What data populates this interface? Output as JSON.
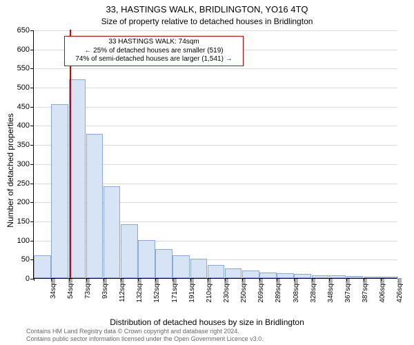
{
  "title_main": "33, HASTINGS WALK, BRIDLINGTON, YO16 4TQ",
  "title_sub": "Size of property relative to detached houses in Bridlington",
  "ylabel": "Number of detached properties",
  "xlabel": "Distribution of detached houses by size in Bridlington",
  "copyright_line1": "Contains HM Land Registry data © Crown copyright and database right 2024.",
  "copyright_line2": "Contains public sector information licensed under the Open Government Licence v3.0.",
  "chart": {
    "type": "histogram",
    "background_color": "#ffffff",
    "grid_color": "#d9d9d9",
    "axis_color": "#000000",
    "bar_fill": "#d6e4f5",
    "bar_border": "#8aa9d6",
    "marker_color": "#cc0000",
    "annotation_border": "#cc0000",
    "ylim": [
      0,
      650
    ],
    "ytick_step": 50,
    "yticks": [
      0,
      50,
      100,
      150,
      200,
      250,
      300,
      350,
      400,
      450,
      500,
      550,
      600,
      650
    ],
    "x_categories": [
      "34sqm",
      "54sqm",
      "73sqm",
      "93sqm",
      "112sqm",
      "132sqm",
      "152sqm",
      "171sqm",
      "191sqm",
      "210sqm",
      "230sqm",
      "250sqm",
      "269sqm",
      "289sqm",
      "308sqm",
      "328sqm",
      "348sqm",
      "367sqm",
      "387sqm",
      "406sqm",
      "426sqm"
    ],
    "values": [
      60,
      455,
      520,
      378,
      240,
      140,
      100,
      75,
      60,
      50,
      35,
      25,
      20,
      15,
      12,
      10,
      8,
      7,
      5,
      4,
      3
    ],
    "bar_border_width": 1,
    "marker_value_sqm": 74,
    "marker_bar_index": 2,
    "label_fontsize": 12,
    "tick_fontsize": 11,
    "xtick_fontsize": 10
  },
  "annotation": {
    "line1": "33 HASTINGS WALK: 74sqm",
    "line2": "← 25% of detached houses are smaller (519)",
    "line3": "74% of semi-detached houses are larger (1,541) →"
  }
}
